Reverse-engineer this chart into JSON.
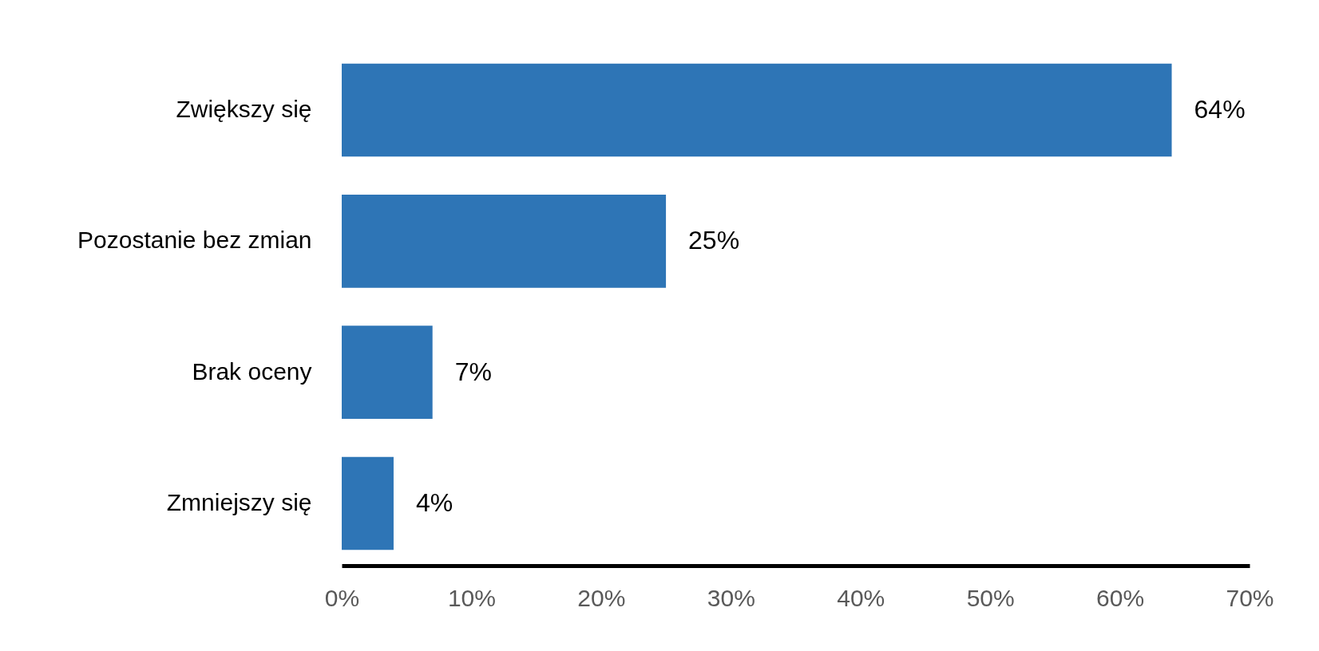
{
  "chart_data": {
    "type": "bar",
    "orientation": "horizontal",
    "categories": [
      "Zwiększy się",
      "Pozostanie bez zmian",
      "Brak oceny",
      "Zmniejszy się"
    ],
    "values": [
      64,
      25,
      7,
      4
    ],
    "color": "#2e75b6",
    "value_labels": [
      "64%",
      "25%",
      "7%",
      "4%"
    ],
    "xlim": [
      0,
      70
    ],
    "xticks": [
      {
        "value": 0,
        "label": "0%"
      },
      {
        "value": 10,
        "label": "10%"
      },
      {
        "value": 20,
        "label": "20%"
      },
      {
        "value": 30,
        "label": "30%"
      },
      {
        "value": 40,
        "label": "40%"
      },
      {
        "value": 50,
        "label": "50%"
      },
      {
        "value": 60,
        "label": "60%"
      },
      {
        "value": 70,
        "label": "70%"
      }
    ],
    "xlabel": null
  }
}
